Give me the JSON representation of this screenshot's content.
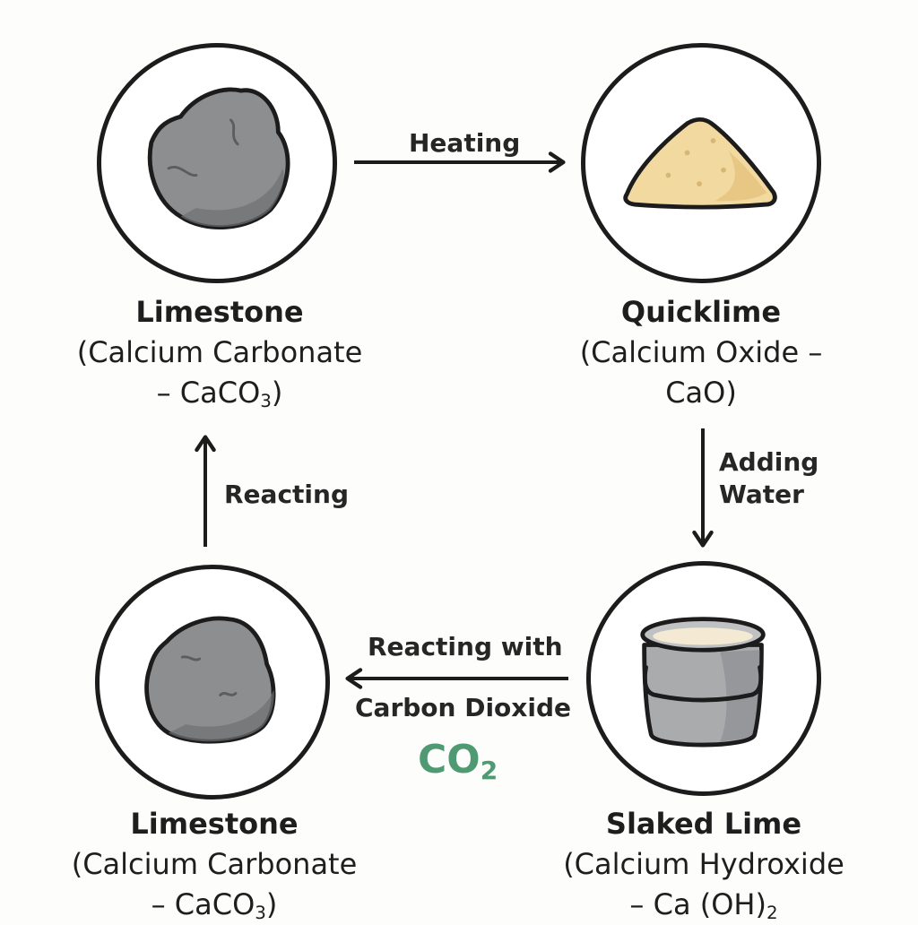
{
  "nodes": {
    "limestone_top": {
      "name": "Limestone",
      "desc_line1": "(Calcium Carbonate",
      "desc_line2_prefix": "– CaCO",
      "desc_line2_sub": "3",
      "desc_line2_suffix": ")",
      "icon": "rock-icon"
    },
    "quicklime": {
      "name": "Quicklime",
      "desc_line1": "(Calcium Oxide –",
      "desc_line2_prefix": "CaO)",
      "desc_line2_sub": "",
      "desc_line2_suffix": "",
      "icon": "powder-pile-icon"
    },
    "slaked_lime": {
      "name": "Slaked Lime",
      "desc_line1": "(Calcium Hydroxide",
      "desc_line2_prefix": "– Ca (OH)",
      "desc_line2_sub": "2",
      "desc_line2_suffix": "",
      "icon": "bucket-icon"
    },
    "limestone_bottom": {
      "name": "Limestone",
      "desc_line1": "(Calcium Carbonate",
      "desc_line2_prefix": "– CaCO",
      "desc_line2_sub": "3",
      "desc_line2_suffix": ")",
      "icon": "rock-icon"
    }
  },
  "arrows": {
    "heating": {
      "line1": "Heating"
    },
    "adding_water": {
      "line1": "Adding",
      "line2": "Water"
    },
    "reacting_co2": {
      "line1": "Reacting with",
      "line2": "Carbon Dioxide"
    },
    "reacting": {
      "line1": "Reacting"
    }
  },
  "co2": {
    "prefix": "CO",
    "sub": "2"
  },
  "colors": {
    "outline": "#1c1c1c",
    "rock": "#8d8e90",
    "quicklime": "#f2d9a0",
    "bucket": "#a9abad",
    "co2": "#4f9a73"
  }
}
